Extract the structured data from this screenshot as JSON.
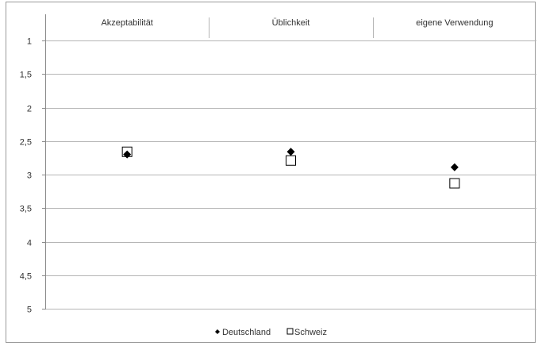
{
  "chart_data": {
    "type": "scatter",
    "categories": [
      "Akzeptabilität",
      "Üblichkeit",
      "eigene Verwendung"
    ],
    "y_ticks": [
      "1",
      "1,5",
      "2",
      "2,5",
      "3",
      "3,5",
      "4",
      "4,5",
      "5"
    ],
    "ylim": [
      1,
      5
    ],
    "y_inverted": true,
    "grid": true,
    "legend_position": "bottom",
    "series": [
      {
        "name": "Deutschland",
        "marker": "diamond",
        "color": "#000000",
        "values": [
          2.7,
          2.66,
          2.89
        ]
      },
      {
        "name": "Schweiz",
        "marker": "square-open",
        "color": "#000000",
        "values": [
          2.66,
          2.79,
          3.13
        ]
      }
    ]
  }
}
